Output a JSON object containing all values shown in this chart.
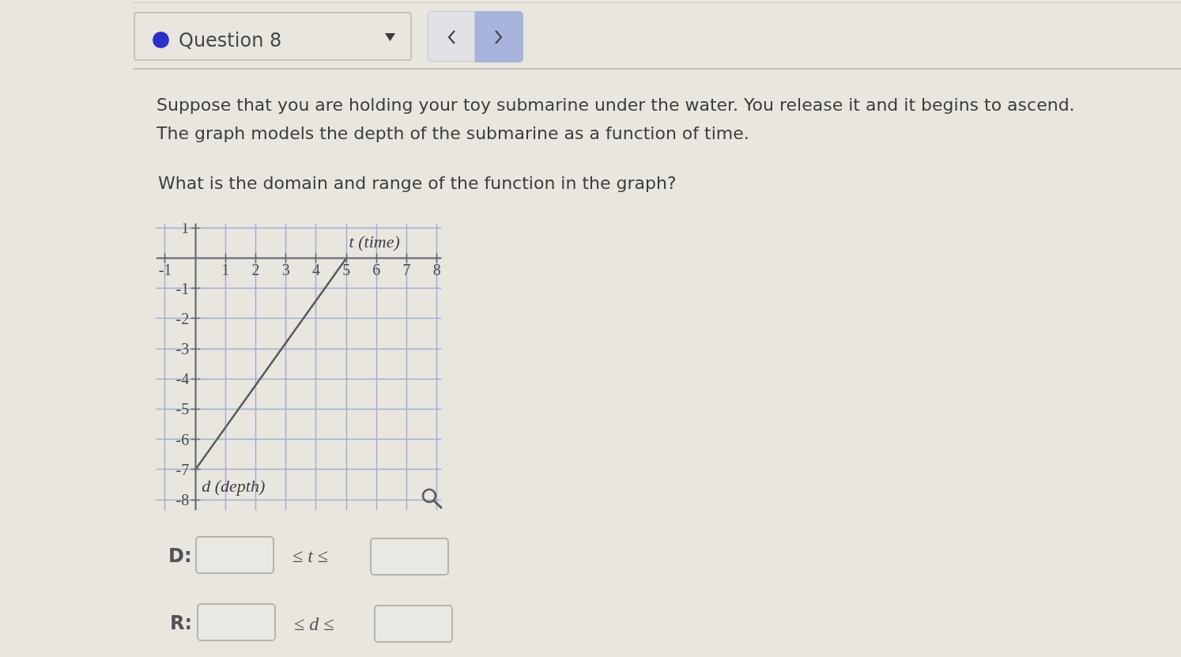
{
  "chart_data": {
    "type": "line",
    "title": "Question 8",
    "subtitle": "Suppose that you are holding your toy submarine under the water. You release it and it begins to ascend.\nThe graph models the depth of the submarine as a function of time.",
    "annotations": [
      "What is the domain and range of the function in the graph?",
      "D:",
      "≤ t ≤",
      "R:",
      "≤ d ≤"
    ],
    "xlabel": "t (time)",
    "ylabel": "d (depth)",
    "x": [
      0,
      5
    ],
    "values": [
      -7,
      0
    ],
    "color": "#5a5a5e",
    "line_style": "solid",
    "xlim": [
      -1.3,
      8.15
    ],
    "ylim": [
      -8.35,
      1.15
    ],
    "xticks": [
      -1,
      1,
      2,
      3,
      4,
      5,
      6,
      7,
      8
    ],
    "yticks": [
      -8,
      -7,
      -6,
      -5,
      -4,
      -3,
      -2,
      -1,
      1
    ],
    "grid": true
  }
}
